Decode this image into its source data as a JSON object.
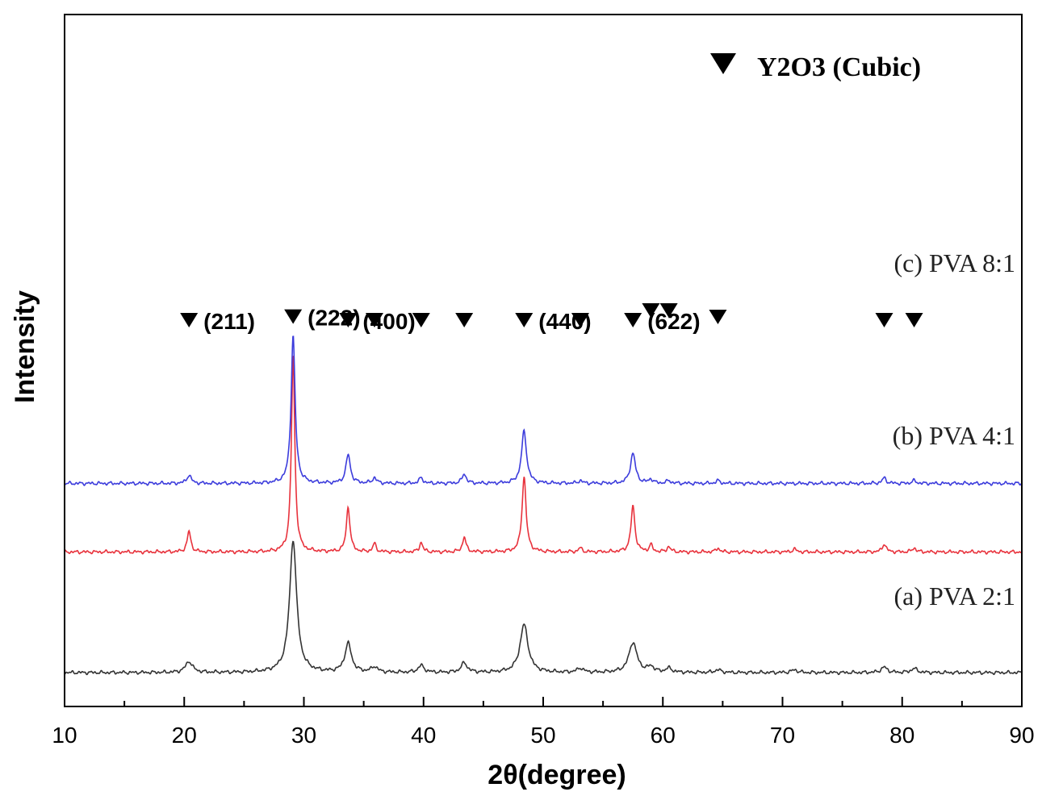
{
  "chart_data": {
    "type": "line",
    "title": "",
    "xlabel": "2θ(degree)",
    "ylabel": "Intensity",
    "xlim": [
      10,
      90
    ],
    "x_ticks": [
      10,
      20,
      30,
      40,
      50,
      60,
      70,
      80,
      90
    ],
    "y_ticks_visible": false,
    "grid": false,
    "legend": {
      "text": "Y2O3 (Cubic)",
      "marker": "down-triangle",
      "placement": "top-right"
    },
    "series": [
      {
        "name": "(a) PVA 2:1",
        "color": "#333333",
        "baseline": 0.0,
        "peaks": [
          {
            "x": 20.4,
            "h": 0.08,
            "w": 0.35
          },
          {
            "x": 29.1,
            "h": 0.97,
            "w": 0.35
          },
          {
            "x": 33.7,
            "h": 0.21,
            "w": 0.33
          },
          {
            "x": 35.9,
            "h": 0.04,
            "w": 0.3
          },
          {
            "x": 39.8,
            "h": 0.05,
            "w": 0.3
          },
          {
            "x": 43.4,
            "h": 0.07,
            "w": 0.3
          },
          {
            "x": 48.4,
            "h": 0.35,
            "w": 0.4
          },
          {
            "x": 53.1,
            "h": 0.03,
            "w": 0.3
          },
          {
            "x": 57.5,
            "h": 0.22,
            "w": 0.4
          },
          {
            "x": 59.0,
            "h": 0.04,
            "w": 0.3
          },
          {
            "x": 60.5,
            "h": 0.03,
            "w": 0.3
          },
          {
            "x": 64.6,
            "h": 0.02,
            "w": 0.3
          },
          {
            "x": 71.0,
            "h": 0.02,
            "w": 0.3
          },
          {
            "x": 78.5,
            "h": 0.04,
            "w": 0.3
          },
          {
            "x": 81.0,
            "h": 0.03,
            "w": 0.3
          }
        ]
      },
      {
        "name": "(b) PVA 4:1",
        "color": "#e8323c",
        "baseline": 0.88,
        "peaks": [
          {
            "x": 20.4,
            "h": 0.15,
            "w": 0.18
          },
          {
            "x": 29.1,
            "h": 1.44,
            "w": 0.17
          },
          {
            "x": 33.7,
            "h": 0.33,
            "w": 0.18
          },
          {
            "x": 35.9,
            "h": 0.06,
            "w": 0.16
          },
          {
            "x": 39.8,
            "h": 0.07,
            "w": 0.16
          },
          {
            "x": 43.4,
            "h": 0.11,
            "w": 0.17
          },
          {
            "x": 48.4,
            "h": 0.55,
            "w": 0.2
          },
          {
            "x": 53.1,
            "h": 0.03,
            "w": 0.16
          },
          {
            "x": 57.5,
            "h": 0.33,
            "w": 0.2
          },
          {
            "x": 59.0,
            "h": 0.05,
            "w": 0.16
          },
          {
            "x": 60.5,
            "h": 0.04,
            "w": 0.16
          },
          {
            "x": 64.6,
            "h": 0.03,
            "w": 0.16
          },
          {
            "x": 71.0,
            "h": 0.02,
            "w": 0.2
          },
          {
            "x": 78.5,
            "h": 0.06,
            "w": 0.18
          },
          {
            "x": 81.0,
            "h": 0.03,
            "w": 0.18
          }
        ]
      },
      {
        "name": "(c) PVA 8:1",
        "color": "#3c3cdc",
        "baseline": 1.38,
        "peaks": [
          {
            "x": 20.4,
            "h": 0.06,
            "w": 0.22
          },
          {
            "x": 29.1,
            "h": 1.08,
            "w": 0.2
          },
          {
            "x": 33.7,
            "h": 0.21,
            "w": 0.22
          },
          {
            "x": 35.9,
            "h": 0.04,
            "w": 0.2
          },
          {
            "x": 39.8,
            "h": 0.04,
            "w": 0.2
          },
          {
            "x": 43.4,
            "h": 0.07,
            "w": 0.2
          },
          {
            "x": 48.4,
            "h": 0.38,
            "w": 0.25
          },
          {
            "x": 53.1,
            "h": 0.02,
            "w": 0.2
          },
          {
            "x": 57.5,
            "h": 0.22,
            "w": 0.25
          },
          {
            "x": 59.0,
            "h": 0.03,
            "w": 0.2
          },
          {
            "x": 60.5,
            "h": 0.02,
            "w": 0.2
          },
          {
            "x": 64.6,
            "h": 0.02,
            "w": 0.2
          },
          {
            "x": 78.5,
            "h": 0.04,
            "w": 0.2
          },
          {
            "x": 81.0,
            "h": 0.02,
            "w": 0.2
          }
        ]
      }
    ],
    "peak_markers": [
      {
        "x": 20.4,
        "label": "(211)"
      },
      {
        "x": 29.1,
        "label": "(222)"
      },
      {
        "x": 33.7,
        "label": "(400)"
      },
      {
        "x": 35.9,
        "label": ""
      },
      {
        "x": 39.8,
        "label": ""
      },
      {
        "x": 43.4,
        "label": ""
      },
      {
        "x": 48.4,
        "label": "(440)"
      },
      {
        "x": 53.1,
        "label": ""
      },
      {
        "x": 57.5,
        "label": "(622)"
      },
      {
        "x": 59.0,
        "label": ""
      },
      {
        "x": 60.5,
        "label": ""
      },
      {
        "x": 64.6,
        "label": ""
      },
      {
        "x": 78.5,
        "label": ""
      },
      {
        "x": 81.0,
        "label": ""
      }
    ]
  }
}
